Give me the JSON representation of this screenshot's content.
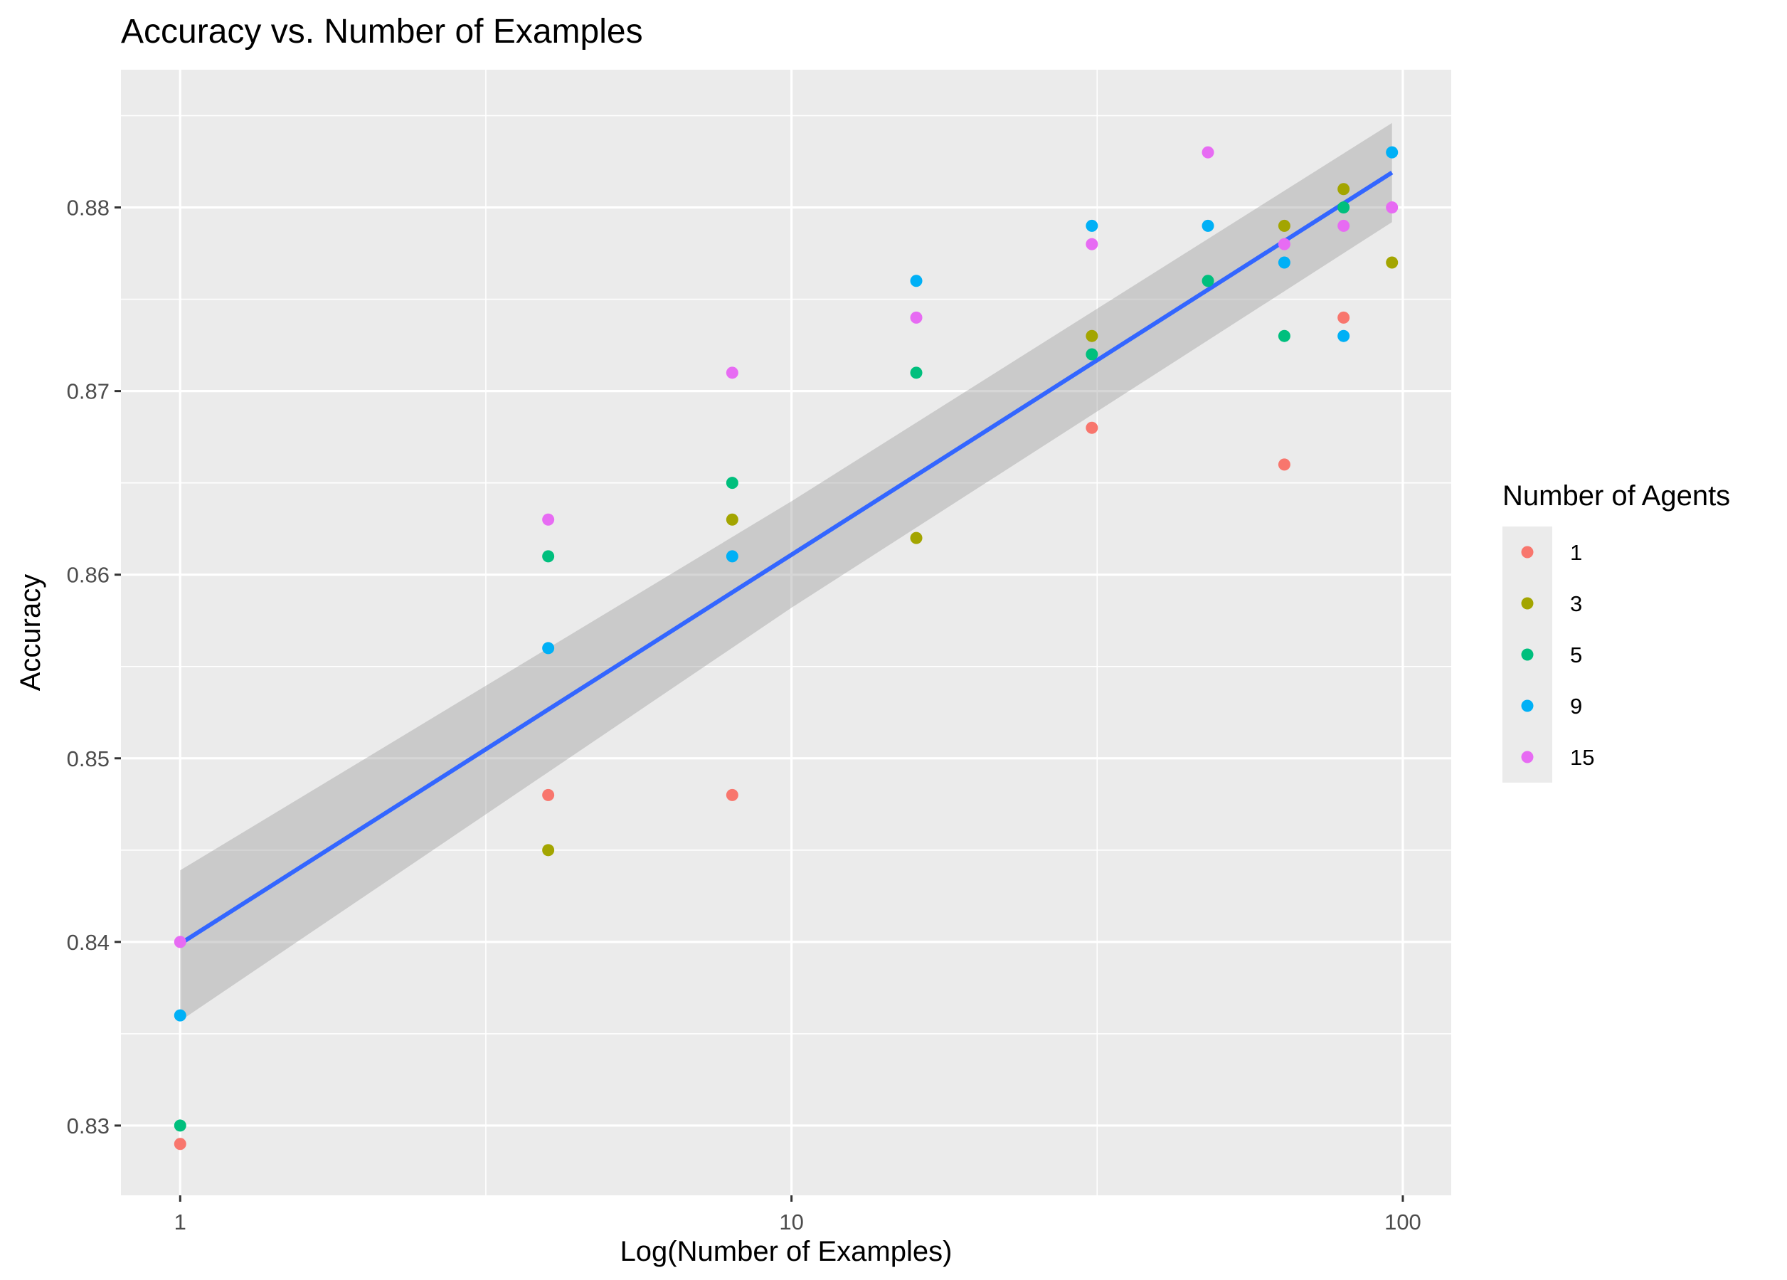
{
  "chart_data": {
    "type": "scatter",
    "title": "Accuracy vs. Number of Examples",
    "xlabel": "Log(Number of Examples)",
    "ylabel": "Accuracy",
    "x_scale": "log10",
    "xlim": [
      0.8,
      120
    ],
    "ylim": [
      0.8262,
      0.8875
    ],
    "x_ticks": [
      {
        "value": 1,
        "label": "1"
      },
      {
        "value": 10,
        "label": "10"
      },
      {
        "value": 100,
        "label": "100"
      }
    ],
    "y_ticks": [
      {
        "value": 0.83,
        "label": "0.83"
      },
      {
        "value": 0.84,
        "label": "0.84"
      },
      {
        "value": 0.85,
        "label": "0.85"
      },
      {
        "value": 0.86,
        "label": "0.86"
      },
      {
        "value": 0.87,
        "label": "0.87"
      },
      {
        "value": 0.88,
        "label": "0.88"
      }
    ],
    "grid": true,
    "panel_background": "#ebebeb",
    "legend": {
      "title": "Number of Agents",
      "position": "right"
    },
    "series": [
      {
        "name": "1",
        "color": "#f8766d",
        "points": [
          [
            1,
            0.829
          ],
          [
            4,
            0.848
          ],
          [
            8,
            0.848
          ],
          [
            31,
            0.868
          ],
          [
            64,
            0.866
          ],
          [
            80,
            0.874
          ]
        ]
      },
      {
        "name": "3",
        "color": "#a3a500",
        "points": [
          [
            4,
            0.845
          ],
          [
            8,
            0.863
          ],
          [
            16,
            0.862
          ],
          [
            31,
            0.873
          ],
          [
            64,
            0.879
          ],
          [
            80,
            0.881
          ],
          [
            96,
            0.877
          ]
        ]
      },
      {
        "name": "5",
        "color": "#00bf7d",
        "points": [
          [
            1,
            0.83
          ],
          [
            4,
            0.861
          ],
          [
            8,
            0.865
          ],
          [
            16,
            0.871
          ],
          [
            31,
            0.872
          ],
          [
            48,
            0.876
          ],
          [
            64,
            0.873
          ],
          [
            80,
            0.88
          ]
        ]
      },
      {
        "name": "9",
        "color": "#00b0f6",
        "points": [
          [
            1,
            0.836
          ],
          [
            4,
            0.856
          ],
          [
            8,
            0.861
          ],
          [
            16,
            0.876
          ],
          [
            31,
            0.879
          ],
          [
            48,
            0.879
          ],
          [
            64,
            0.877
          ],
          [
            80,
            0.873
          ],
          [
            96,
            0.883
          ]
        ]
      },
      {
        "name": "15",
        "color": "#e76bf3",
        "points": [
          [
            1,
            0.84
          ],
          [
            4,
            0.863
          ],
          [
            8,
            0.871
          ],
          [
            16,
            0.874
          ],
          [
            31,
            0.878
          ],
          [
            48,
            0.883
          ],
          [
            64,
            0.878
          ],
          [
            80,
            0.879
          ],
          [
            96,
            0.88
          ]
        ]
      }
    ],
    "trend_line": {
      "color": "#3366ff",
      "band_color": "#999999",
      "points": [
        [
          1,
          0.8399
        ],
        [
          96,
          0.8819
        ]
      ],
      "confidence_band": [
        {
          "x": 1,
          "lower": 0.8357,
          "upper": 0.8439
        },
        {
          "x": 10,
          "lower": 0.8582,
          "upper": 0.864
        },
        {
          "x": 96,
          "lower": 0.8792,
          "upper": 0.8846
        }
      ]
    }
  }
}
